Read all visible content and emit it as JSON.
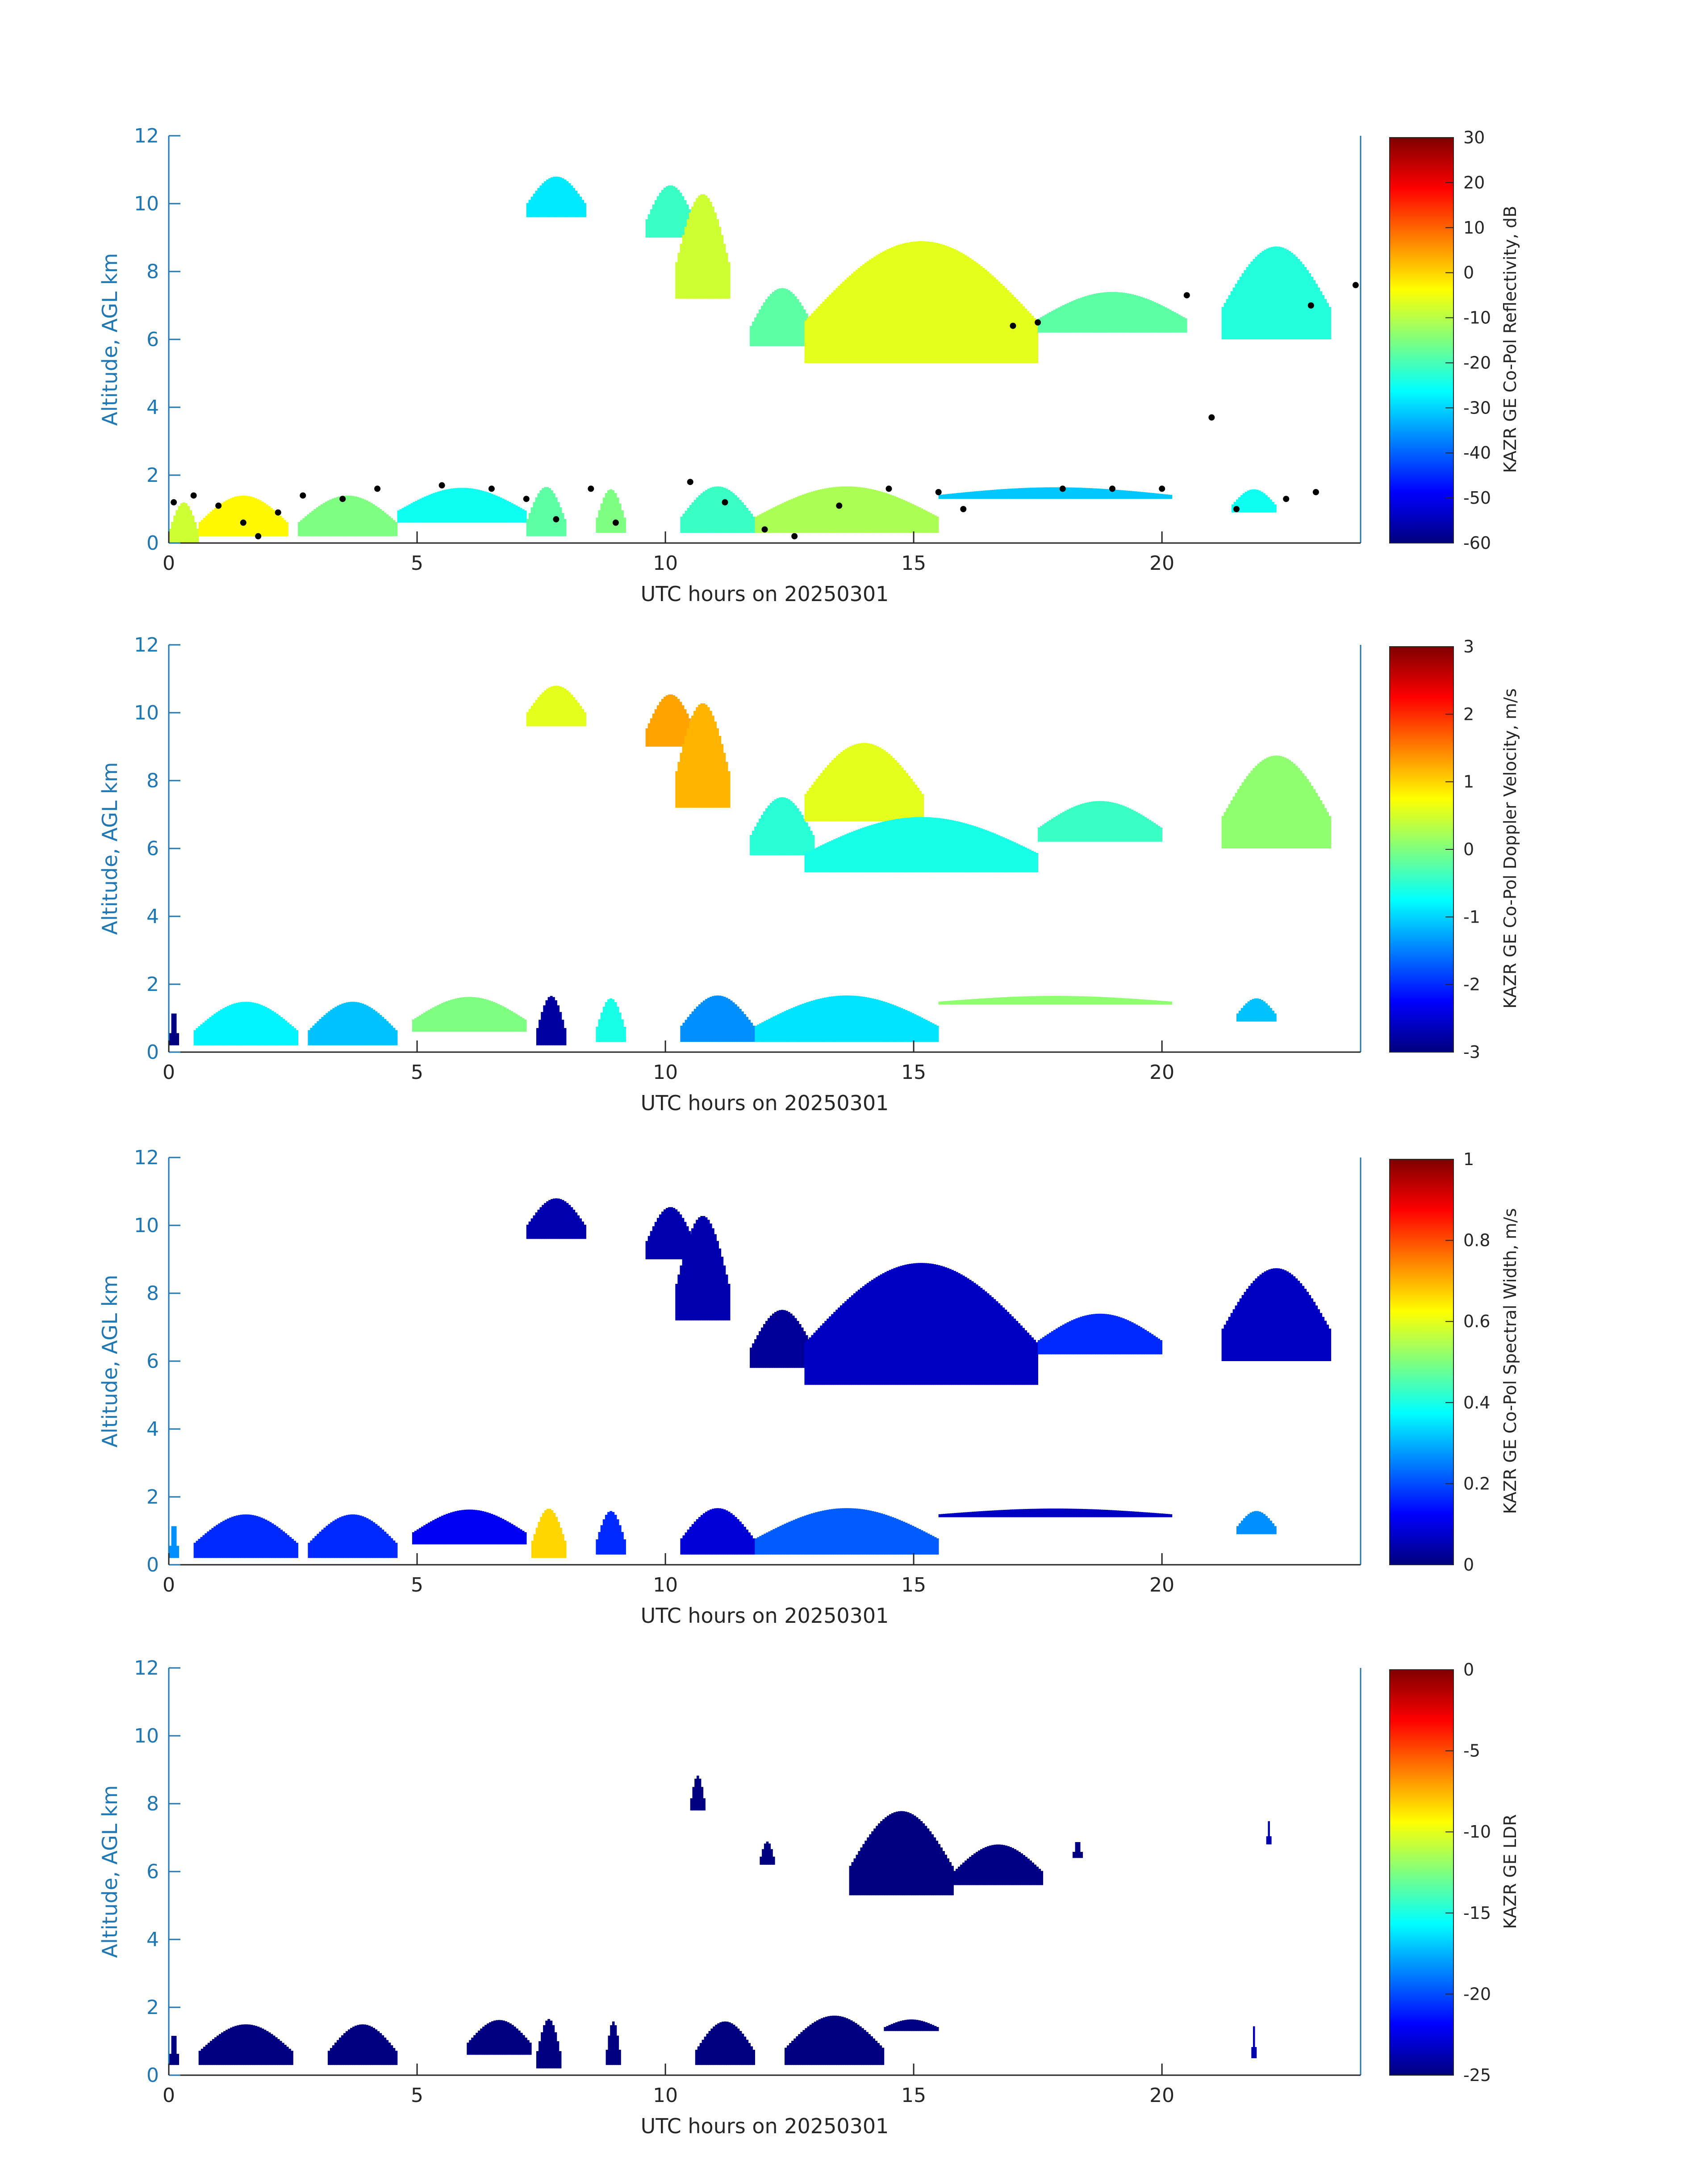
{
  "chart_data": [
    {
      "type": "heatmap",
      "xlabel": "UTC hours on 20250301",
      "ylabel": "Altitude, AGL km",
      "xlim": [
        0,
        24
      ],
      "ylim": [
        0,
        12
      ],
      "xticks": [
        0,
        5,
        10,
        15,
        20
      ],
      "yticks": [
        0,
        2,
        4,
        6,
        8,
        10,
        12
      ],
      "colorbar": {
        "label": "KAZR GE Co-Pol Reflectivity, dB",
        "range": [
          -60,
          30
        ],
        "ticks": [
          30,
          20,
          10,
          0,
          -10,
          -20,
          -30,
          -40,
          -50,
          -60
        ],
        "colormap": "jet"
      },
      "regions": [
        {
          "x": [
            0,
            0.6
          ],
          "y": [
            0,
            1.4
          ],
          "value": -5
        },
        {
          "x": [
            0.6,
            2.4
          ],
          "y": [
            0.2,
            1.6
          ],
          "value": 0
        },
        {
          "x": [
            2.6,
            4.6
          ],
          "y": [
            0.2,
            1.6
          ],
          "value": -12
        },
        {
          "x": [
            4.6,
            7.2
          ],
          "y": [
            0.6,
            1.8
          ],
          "value": -22
        },
        {
          "x": [
            7.2,
            8.0
          ],
          "y": [
            0.2,
            1.9
          ],
          "value": -15
        },
        {
          "x": [
            8.6,
            9.2
          ],
          "y": [
            0.3,
            1.8
          ],
          "value": -12
        },
        {
          "x": [
            10.3,
            11.8
          ],
          "y": [
            0.3,
            1.9
          ],
          "value": -18
        },
        {
          "x": [
            11.8,
            15.5
          ],
          "y": [
            0.3,
            1.9
          ],
          "value": -8
        },
        {
          "x": [
            15.5,
            20.2
          ],
          "y": [
            1.3,
            1.7
          ],
          "value": -28
        },
        {
          "x": [
            21.4,
            22.3
          ],
          "y": [
            0.9,
            1.7
          ],
          "value": -22
        },
        {
          "x": [
            7.2,
            8.4
          ],
          "y": [
            9.6,
            11.0
          ],
          "value": -25
        },
        {
          "x": [
            9.6,
            10.6
          ],
          "y": [
            9.0,
            10.8
          ],
          "value": -18
        },
        {
          "x": [
            10.2,
            11.3
          ],
          "y": [
            7.2,
            10.8
          ],
          "value": -5
        },
        {
          "x": [
            11.7,
            13.0
          ],
          "y": [
            5.8,
            7.8
          ],
          "value": -15
        },
        {
          "x": [
            12.8,
            17.5
          ],
          "y": [
            5.3,
            9.5
          ],
          "value": -3
        },
        {
          "x": [
            17.5,
            20.5
          ],
          "y": [
            6.2,
            7.6
          ],
          "value": -15
        },
        {
          "x": [
            21.2,
            23.4
          ],
          "y": [
            6.0,
            9.2
          ],
          "value": -20
        }
      ],
      "points": [
        {
          "x": 0.1,
          "y": 1.2
        },
        {
          "x": 0.5,
          "y": 1.4
        },
        {
          "x": 1.0,
          "y": 1.1
        },
        {
          "x": 1.5,
          "y": 0.6
        },
        {
          "x": 1.8,
          "y": 0.2
        },
        {
          "x": 2.2,
          "y": 0.9
        },
        {
          "x": 2.7,
          "y": 1.4
        },
        {
          "x": 3.5,
          "y": 1.3
        },
        {
          "x": 4.2,
          "y": 1.6
        },
        {
          "x": 5.5,
          "y": 1.7
        },
        {
          "x": 6.5,
          "y": 1.6
        },
        {
          "x": 7.2,
          "y": 1.3
        },
        {
          "x": 7.8,
          "y": 0.7
        },
        {
          "x": 8.5,
          "y": 1.6
        },
        {
          "x": 9.0,
          "y": 0.6
        },
        {
          "x": 10.5,
          "y": 1.8
        },
        {
          "x": 11.2,
          "y": 1.2
        },
        {
          "x": 12.0,
          "y": 0.4
        },
        {
          "x": 12.6,
          "y": 0.2
        },
        {
          "x": 13.5,
          "y": 1.1
        },
        {
          "x": 14.5,
          "y": 1.6
        },
        {
          "x": 15.5,
          "y": 1.5
        },
        {
          "x": 16.0,
          "y": 1.0
        },
        {
          "x": 17.0,
          "y": 6.4
        },
        {
          "x": 17.5,
          "y": 6.5
        },
        {
          "x": 18.0,
          "y": 1.6
        },
        {
          "x": 19.0,
          "y": 1.6
        },
        {
          "x": 20.0,
          "y": 1.6
        },
        {
          "x": 20.5,
          "y": 7.3
        },
        {
          "x": 21.0,
          "y": 3.7
        },
        {
          "x": 21.5,
          "y": 1.0
        },
        {
          "x": 22.5,
          "y": 1.3
        },
        {
          "x": 23.1,
          "y": 1.5
        },
        {
          "x": 23.0,
          "y": 7.0
        },
        {
          "x": 23.9,
          "y": 7.6
        }
      ]
    },
    {
      "type": "heatmap",
      "xlabel": "UTC hours on 20250301",
      "ylabel": "Altitude, AGL km",
      "xlim": [
        0,
        24
      ],
      "ylim": [
        0,
        12
      ],
      "xticks": [
        0,
        5,
        10,
        15,
        20
      ],
      "yticks": [
        0,
        2,
        4,
        6,
        8,
        10,
        12
      ],
      "colorbar": {
        "label": "KAZR GE Co-Pol Doppler Velocity, m/s",
        "range": [
          -3,
          3
        ],
        "ticks": [
          3,
          2,
          1,
          0,
          -1,
          -2,
          -3
        ],
        "colormap": "jet"
      },
      "regions": [
        {
          "x": [
            0,
            0.2
          ],
          "y": [
            0.2,
            1.4
          ],
          "value": -2.8
        },
        {
          "x": [
            0.5,
            2.6
          ],
          "y": [
            0.2,
            1.7
          ],
          "value": -0.6
        },
        {
          "x": [
            2.8,
            4.6
          ],
          "y": [
            0.2,
            1.7
          ],
          "value": -0.9
        },
        {
          "x": [
            4.9,
            7.2
          ],
          "y": [
            0.6,
            1.8
          ],
          "value": 0.2
        },
        {
          "x": [
            7.4,
            8.0
          ],
          "y": [
            0.2,
            1.9
          ],
          "value": -2.6
        },
        {
          "x": [
            8.6,
            9.2
          ],
          "y": [
            0.3,
            1.8
          ],
          "value": -0.4
        },
        {
          "x": [
            10.3,
            11.8
          ],
          "y": [
            0.3,
            1.9
          ],
          "value": -1.2
        },
        {
          "x": [
            11.8,
            15.5
          ],
          "y": [
            0.3,
            1.9
          ],
          "value": -0.7
        },
        {
          "x": [
            15.5,
            20.2
          ],
          "y": [
            1.4,
            1.7
          ],
          "value": 0.3
        },
        {
          "x": [
            21.5,
            22.3
          ],
          "y": [
            0.9,
            1.7
          ],
          "value": -0.9
        },
        {
          "x": [
            7.2,
            8.4
          ],
          "y": [
            9.6,
            11.0
          ],
          "value": 0.8
        },
        {
          "x": [
            9.6,
            10.6
          ],
          "y": [
            9.0,
            10.8
          ],
          "value": 1.5
        },
        {
          "x": [
            10.2,
            11.3
          ],
          "y": [
            7.2,
            10.8
          ],
          "value": 1.4
        },
        {
          "x": [
            11.7,
            13.0
          ],
          "y": [
            5.8,
            7.8
          ],
          "value": -0.3
        },
        {
          "x": [
            12.8,
            15.2
          ],
          "y": [
            6.8,
            9.5
          ],
          "value": 0.8
        },
        {
          "x": [
            12.8,
            17.5
          ],
          "y": [
            5.3,
            7.2
          ],
          "value": -0.4
        },
        {
          "x": [
            17.5,
            20.0
          ],
          "y": [
            6.2,
            7.6
          ],
          "value": -0.2
        },
        {
          "x": [
            21.2,
            23.4
          ],
          "y": [
            6.0,
            9.2
          ],
          "value": 0.3
        }
      ]
    },
    {
      "type": "heatmap",
      "xlabel": "UTC hours on 20250301",
      "ylabel": "Altitude, AGL km",
      "xlim": [
        0,
        24
      ],
      "ylim": [
        0,
        12
      ],
      "xticks": [
        0,
        5,
        10,
        15,
        20
      ],
      "yticks": [
        0,
        2,
        4,
        6,
        8,
        10,
        12
      ],
      "colorbar": {
        "label": "KAZR GE Co-Pol Spectral Width, m/s",
        "range": [
          0,
          1
        ],
        "ticks": [
          1,
          0.8,
          0.6,
          0.4,
          0.2,
          0
        ],
        "colormap": "jet"
      },
      "regions": [
        {
          "x": [
            0,
            0.2
          ],
          "y": [
            0.2,
            1.4
          ],
          "value": 0.3
        },
        {
          "x": [
            0.5,
            2.6
          ],
          "y": [
            0.2,
            1.7
          ],
          "value": 0.2
        },
        {
          "x": [
            2.8,
            4.6
          ],
          "y": [
            0.2,
            1.7
          ],
          "value": 0.2
        },
        {
          "x": [
            4.9,
            7.2
          ],
          "y": [
            0.6,
            1.8
          ],
          "value": 0.15
        },
        {
          "x": [
            7.3,
            8.0
          ],
          "y": [
            0.2,
            1.9
          ],
          "value": 0.7
        },
        {
          "x": [
            8.6,
            9.2
          ],
          "y": [
            0.3,
            1.8
          ],
          "value": 0.2
        },
        {
          "x": [
            10.3,
            11.8
          ],
          "y": [
            0.3,
            1.9
          ],
          "value": 0.12
        },
        {
          "x": [
            11.8,
            15.5
          ],
          "y": [
            0.3,
            1.9
          ],
          "value": 0.25
        },
        {
          "x": [
            15.5,
            20.2
          ],
          "y": [
            1.4,
            1.7
          ],
          "value": 0.1
        },
        {
          "x": [
            21.5,
            22.3
          ],
          "y": [
            0.9,
            1.7
          ],
          "value": 0.3
        },
        {
          "x": [
            7.2,
            8.4
          ],
          "y": [
            9.6,
            11.0
          ],
          "value": 0.08
        },
        {
          "x": [
            9.6,
            10.6
          ],
          "y": [
            9.0,
            10.8
          ],
          "value": 0.08
        },
        {
          "x": [
            10.2,
            11.3
          ],
          "y": [
            7.2,
            10.8
          ],
          "value": 0.08
        },
        {
          "x": [
            11.7,
            13.0
          ],
          "y": [
            5.8,
            7.8
          ],
          "value": 0.06
        },
        {
          "x": [
            12.8,
            17.5
          ],
          "y": [
            5.3,
            9.5
          ],
          "value": 0.1
        },
        {
          "x": [
            17.5,
            20.0
          ],
          "y": [
            6.2,
            7.6
          ],
          "value": 0.2
        },
        {
          "x": [
            21.2,
            23.4
          ],
          "y": [
            6.0,
            9.2
          ],
          "value": 0.1
        }
      ]
    },
    {
      "type": "heatmap",
      "xlabel": "UTC hours on 20250301",
      "ylabel": "Altitude, AGL km",
      "xlim": [
        0,
        24
      ],
      "ylim": [
        0,
        12
      ],
      "xticks": [
        0,
        5,
        10,
        15,
        20
      ],
      "yticks": [
        0,
        2,
        4,
        6,
        8,
        10,
        12
      ],
      "colorbar": {
        "label": "KAZR GE LDR",
        "range": [
          -25,
          0
        ],
        "ticks": [
          0,
          -5,
          -10,
          -15,
          -20,
          -25
        ],
        "colormap": "jet"
      },
      "regions": [
        {
          "x": [
            0,
            0.2
          ],
          "y": [
            0.3,
            1.4
          ],
          "value": -25
        },
        {
          "x": [
            0.6,
            2.5
          ],
          "y": [
            0.3,
            1.7
          ],
          "value": -25
        },
        {
          "x": [
            3.2,
            4.6
          ],
          "y": [
            0.3,
            1.7
          ],
          "value": -25
        },
        {
          "x": [
            6.0,
            7.3
          ],
          "y": [
            0.6,
            1.8
          ],
          "value": -25
        },
        {
          "x": [
            7.4,
            7.9
          ],
          "y": [
            0.2,
            1.9
          ],
          "value": -25
        },
        {
          "x": [
            8.8,
            9.1
          ],
          "y": [
            0.3,
            1.8
          ],
          "value": -25
        },
        {
          "x": [
            10.6,
            11.8
          ],
          "y": [
            0.3,
            1.8
          ],
          "value": -25
        },
        {
          "x": [
            12.4,
            14.4
          ],
          "y": [
            0.3,
            2.0
          ],
          "value": -25
        },
        {
          "x": [
            14.4,
            15.5
          ],
          "y": [
            1.3,
            1.7
          ],
          "value": -24
        },
        {
          "x": [
            10.5,
            10.8
          ],
          "y": [
            7.8,
            9.0
          ],
          "value": -25
        },
        {
          "x": [
            11.9,
            12.2
          ],
          "y": [
            6.2,
            7.0
          ],
          "value": -25
        },
        {
          "x": [
            13.7,
            15.8
          ],
          "y": [
            5.3,
            8.2
          ],
          "value": -25
        },
        {
          "x": [
            15.8,
            17.6
          ],
          "y": [
            5.6,
            7.0
          ],
          "value": -24
        },
        {
          "x": [
            18.2,
            18.4
          ],
          "y": [
            6.4,
            7.0
          ],
          "value": -25
        },
        {
          "x": [
            21.8,
            21.9
          ],
          "y": [
            0.5,
            1.6
          ],
          "value": -23
        },
        {
          "x": [
            22.1,
            22.2
          ],
          "y": [
            6.8,
            7.6
          ],
          "value": -23
        }
      ]
    }
  ]
}
